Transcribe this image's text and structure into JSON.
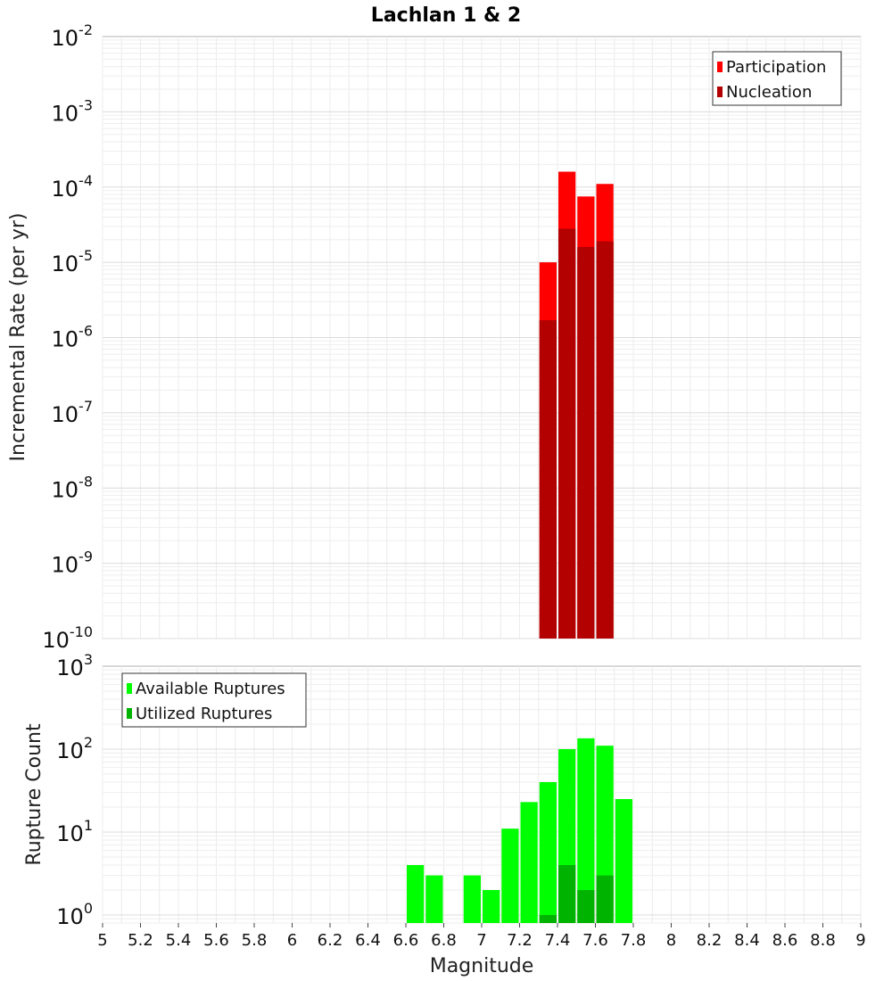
{
  "chart_data": {
    "title": "Lachlan 1 & 2",
    "xlabel": "Magnitude",
    "x_ticks": [
      "5",
      "5.2",
      "5.4",
      "5.6",
      "5.8",
      "6",
      "6.2",
      "6.4",
      "6.6",
      "6.8",
      "7",
      "7.2",
      "7.4",
      "7.6",
      "7.8",
      "8",
      "8.2",
      "8.4",
      "8.6",
      "8.8",
      "9"
    ],
    "xlim": [
      5,
      9
    ],
    "bin_width": 0.1,
    "panels": [
      {
        "type": "bar",
        "ylabel": "Incremental Rate (per yr)",
        "yscale": "log",
        "ylim": [
          1e-10,
          0.01
        ],
        "y_tick_exponents": [
          "-10",
          "-9",
          "-8",
          "-7",
          "-6",
          "-5",
          "-4",
          "-3",
          "-2"
        ],
        "legend_position": "top-right",
        "grid": true,
        "series": [
          {
            "name": "Participation",
            "color": "#ff0000",
            "x": [
              7.35,
              7.45,
              7.55,
              7.65
            ],
            "values": [
              1e-05,
              0.00016,
              7.5e-05,
              0.00011
            ]
          },
          {
            "name": "Nucleation",
            "color": "#b30000",
            "x": [
              7.35,
              7.45,
              7.55,
              7.65
            ],
            "values": [
              1.7e-06,
              2.8e-05,
              1.6e-05,
              1.9e-05
            ]
          }
        ]
      },
      {
        "type": "bar",
        "ylabel": "Rupture Count",
        "yscale": "log",
        "ylim": [
          0.8,
          1000
        ],
        "y_tick_exponents": [
          "0",
          "1",
          "2",
          "3"
        ],
        "legend_position": "top-left",
        "grid": true,
        "series": [
          {
            "name": "Available Ruptures",
            "color": "#00ff00",
            "x": [
              6.65,
              6.75,
              6.95,
              7.05,
              7.15,
              7.25,
              7.35,
              7.45,
              7.55,
              7.65,
              7.75
            ],
            "values": [
              4,
              3,
              3,
              2,
              11,
              23,
              40,
              100,
              135,
              110,
              25
            ]
          },
          {
            "name": "Utilized Ruptures",
            "color": "#00b300",
            "x": [
              7.35,
              7.45,
              7.55,
              7.65
            ],
            "values": [
              1,
              4,
              2,
              3
            ]
          }
        ]
      }
    ]
  }
}
